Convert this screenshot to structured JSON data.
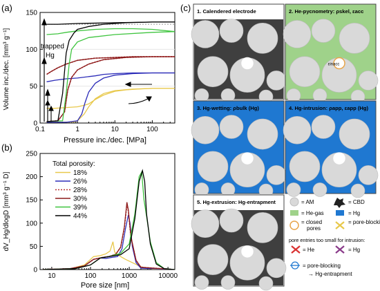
{
  "panel_a": {
    "label": "(a)",
    "chart_data": {
      "type": "line",
      "xlabel": "Pressure inc./dec. [MPa]",
      "ylabel": "Volume inc./dec. [mm³ g⁻¹]",
      "xscale": "log",
      "xlim": [
        0.1,
        400
      ],
      "ylim": [
        0,
        150
      ],
      "xticks": [
        "0.1",
        "1",
        "10",
        "100"
      ],
      "yticks": [
        "0",
        "50",
        "100",
        "150"
      ],
      "annotation": "trapped Hg",
      "series": [
        {
          "key": "18",
          "color": "#e8c84a",
          "dash": false,
          "intrusion": [
            [
              0.15,
              1
            ],
            [
              0.4,
              1
            ],
            [
              0.8,
              1.5
            ],
            [
              1.0,
              3
            ],
            [
              1.5,
              12
            ],
            [
              2,
              22
            ],
            [
              3,
              33
            ],
            [
              5,
              40
            ],
            [
              10,
              44
            ],
            [
              30,
              46
            ],
            [
              100,
              47
            ],
            [
              400,
              47
            ]
          ],
          "extrusion": [
            [
              400,
              47
            ],
            [
              100,
              47
            ],
            [
              40,
              46
            ],
            [
              20,
              45
            ],
            [
              10,
              43
            ],
            [
              5,
              38
            ],
            [
              3,
              32
            ],
            [
              2,
              26
            ],
            [
              1.5,
              24
            ],
            [
              1,
              22
            ],
            [
              0.5,
              21
            ],
            [
              0.25,
              20
            ],
            [
              0.15,
              20
            ]
          ]
        },
        {
          "key": "26",
          "color": "#2b2bb8",
          "dash": false,
          "intrusion": [
            [
              0.15,
              1
            ],
            [
              0.5,
              1
            ],
            [
              1.0,
              3
            ],
            [
              1.3,
              12
            ],
            [
              1.6,
              28
            ],
            [
              2,
              42
            ],
            [
              3,
              54
            ],
            [
              5,
              61
            ],
            [
              10,
              65
            ],
            [
              30,
              67
            ],
            [
              100,
              68
            ],
            [
              400,
              68
            ]
          ],
          "extrusion": [
            [
              400,
              68
            ],
            [
              100,
              68
            ],
            [
              30,
              68
            ],
            [
              10,
              67
            ],
            [
              5,
              66
            ],
            [
              3,
              64
            ],
            [
              2,
              63
            ],
            [
              1,
              61
            ],
            [
              0.5,
              60
            ],
            [
              0.25,
              58
            ],
            [
              0.15,
              56
            ]
          ]
        },
        {
          "key": "28",
          "color": "#b83030",
          "dash": true,
          "intrusion": [
            [
              0.15,
              2
            ],
            [
              0.3,
              3
            ],
            [
              0.45,
              15
            ],
            [
              0.55,
              45
            ],
            [
              0.7,
              62
            ],
            [
              1,
              72
            ],
            [
              2,
              80
            ],
            [
              5,
              86
            ],
            [
              20,
              89
            ],
            [
              100,
              90
            ],
            [
              400,
              90
            ]
          ],
          "extrusion": [
            [
              400,
              90
            ],
            [
              100,
              90
            ],
            [
              30,
              90
            ],
            [
              10,
              89
            ],
            [
              3,
              88
            ],
            [
              1,
              85
            ],
            [
              0.5,
              80
            ],
            [
              0.3,
              75
            ],
            [
              0.2,
              70
            ],
            [
              0.15,
              66
            ]
          ]
        },
        {
          "key": "30",
          "color": "#8b1a1a",
          "dash": false,
          "intrusion": [
            [
              0.15,
              2
            ],
            [
              0.3,
              3
            ],
            [
              0.45,
              15
            ],
            [
              0.55,
              45
            ],
            [
              0.7,
              62
            ],
            [
              1,
              72
            ],
            [
              2,
              80
            ],
            [
              5,
              86
            ],
            [
              20,
              89
            ],
            [
              100,
              90
            ],
            [
              400,
              90
            ]
          ],
          "extrusion": [
            [
              400,
              90
            ],
            [
              100,
              90
            ],
            [
              30,
              90
            ],
            [
              10,
              89
            ],
            [
              3,
              88
            ],
            [
              1,
              85
            ],
            [
              0.5,
              80
            ],
            [
              0.3,
              75
            ],
            [
              0.2,
              70
            ],
            [
              0.15,
              66
            ]
          ]
        },
        {
          "key": "39",
          "color": "#3ec43e",
          "dash": false,
          "intrusion": [
            [
              0.15,
              2
            ],
            [
              0.4,
              3
            ],
            [
              0.5,
              40
            ],
            [
              0.6,
              80
            ],
            [
              0.7,
              100
            ],
            [
              1,
              110
            ],
            [
              2,
              116
            ],
            [
              10,
              120
            ],
            [
              100,
              123
            ],
            [
              400,
              124
            ]
          ],
          "extrusion": [
            [
              400,
              124
            ],
            [
              100,
              127
            ],
            [
              30,
              128
            ],
            [
              10,
              128
            ],
            [
              3,
              127
            ],
            [
              1,
              125
            ],
            [
              0.5,
              123
            ],
            [
              0.3,
              121
            ],
            [
              0.15,
              120
            ]
          ]
        },
        {
          "key": "44",
          "color": "#000000",
          "dash": false,
          "intrusion": [
            [
              0.15,
              2
            ],
            [
              0.3,
              3
            ],
            [
              0.4,
              40
            ],
            [
              0.5,
              95
            ],
            [
              0.6,
              112
            ],
            [
              0.8,
              122
            ],
            [
              1,
              127
            ],
            [
              2,
              131
            ],
            [
              5,
              134
            ],
            [
              20,
              136
            ],
            [
              100,
              137
            ],
            [
              400,
              137
            ]
          ],
          "extrusion": [
            [
              400,
              137
            ],
            [
              100,
              137
            ],
            [
              10,
              136
            ],
            [
              1,
              135
            ],
            [
              0.3,
              134
            ],
            [
              0.15,
              134
            ]
          ]
        }
      ]
    }
  },
  "panel_b": {
    "label": "(b)",
    "chart_data": {
      "type": "line",
      "xlabel": "Pore size [nm]",
      "ylabel": "dV_Hg/dlogD [mm³ g⁻¹ D]",
      "xscale": "log",
      "xlim": [
        5,
        15000
      ],
      "ylim": [
        0,
        250
      ],
      "xticks": [
        "10",
        "100",
        "1000",
        "10000"
      ],
      "yticks": [
        "0",
        "50",
        "100",
        "150",
        "200",
        "250"
      ],
      "legend_title": "Total porosity:",
      "legend": [
        {
          "key": "18",
          "label": "18%"
        },
        {
          "key": "26",
          "label": "26%"
        },
        {
          "key": "28",
          "label": "28%"
        },
        {
          "key": "30",
          "label": "30%"
        },
        {
          "key": "39",
          "label": "39%"
        },
        {
          "key": "44",
          "label": "44%"
        }
      ],
      "series": [
        {
          "key": "18",
          "color": "#e8c84a",
          "dash": false,
          "points": [
            [
              6,
              0
            ],
            [
              30,
              2
            ],
            [
              70,
              10
            ],
            [
              120,
              28
            ],
            [
              180,
              30
            ],
            [
              250,
              34
            ],
            [
              320,
              40
            ],
            [
              380,
              60
            ],
            [
              420,
              38
            ],
            [
              500,
              32
            ],
            [
              600,
              28
            ],
            [
              800,
              22
            ],
            [
              1200,
              15
            ],
            [
              2000,
              6
            ],
            [
              4000,
              1
            ],
            [
              15000,
              0
            ]
          ]
        },
        {
          "key": "26",
          "color": "#2b2bb8",
          "dash": false,
          "points": [
            [
              6,
              0
            ],
            [
              30,
              2
            ],
            [
              70,
              8
            ],
            [
              120,
              22
            ],
            [
              180,
              25
            ],
            [
              250,
              24
            ],
            [
              350,
              26
            ],
            [
              500,
              28
            ],
            [
              650,
              45
            ],
            [
              800,
              88
            ],
            [
              950,
              118
            ],
            [
              1050,
              100
            ],
            [
              1200,
              50
            ],
            [
              1500,
              15
            ],
            [
              2000,
              3
            ],
            [
              15000,
              0
            ]
          ]
        },
        {
          "key": "28",
          "color": "#b83030",
          "dash": true,
          "points": [
            [
              6,
              0
            ],
            [
              30,
              2
            ],
            [
              70,
              8
            ],
            [
              120,
              22
            ],
            [
              200,
              26
            ],
            [
              300,
              28
            ],
            [
              450,
              33
            ],
            [
              600,
              48
            ],
            [
              750,
              90
            ],
            [
              870,
              140
            ],
            [
              950,
              125
            ],
            [
              1100,
              70
            ],
            [
              1500,
              20
            ],
            [
              2000,
              5
            ],
            [
              15000,
              0
            ]
          ]
        },
        {
          "key": "30",
          "color": "#8b1a1a",
          "dash": false,
          "points": [
            [
              6,
              0
            ],
            [
              30,
              2
            ],
            [
              70,
              8
            ],
            [
              120,
              22
            ],
            [
              200,
              26
            ],
            [
              300,
              28
            ],
            [
              450,
              33
            ],
            [
              600,
              48
            ],
            [
              750,
              92
            ],
            [
              870,
              145
            ],
            [
              950,
              128
            ],
            [
              1100,
              72
            ],
            [
              1500,
              20
            ],
            [
              2000,
              5
            ],
            [
              15000,
              0
            ]
          ]
        },
        {
          "key": "39",
          "color": "#3ec43e",
          "dash": false,
          "points": [
            [
              6,
              0
            ],
            [
              40,
              2
            ],
            [
              100,
              10
            ],
            [
              180,
              25
            ],
            [
              300,
              28
            ],
            [
              600,
              35
            ],
            [
              1000,
              55
            ],
            [
              1400,
              120
            ],
            [
              1800,
              200
            ],
            [
              2100,
              210
            ],
            [
              2400,
              150
            ],
            [
              2800,
              115
            ],
            [
              3500,
              60
            ],
            [
              5000,
              15
            ],
            [
              8000,
              2
            ],
            [
              15000,
              0
            ]
          ]
        },
        {
          "key": "44",
          "color": "#000000",
          "dash": false,
          "points": [
            [
              6,
              0
            ],
            [
              40,
              2
            ],
            [
              100,
              10
            ],
            [
              180,
              25
            ],
            [
              300,
              28
            ],
            [
              600,
              32
            ],
            [
              1000,
              45
            ],
            [
              1400,
              110
            ],
            [
              1800,
              190
            ],
            [
              2200,
              213
            ],
            [
              2500,
              190
            ],
            [
              2800,
              120
            ],
            [
              3500,
              55
            ],
            [
              5000,
              12
            ],
            [
              8000,
              2
            ],
            [
              15000,
              0
            ]
          ]
        }
      ]
    }
  },
  "panel_c": {
    "label": "(c)",
    "steps": [
      {
        "num": "1.",
        "title": "Calendered electrode"
      },
      {
        "num": "2.",
        "title": "He-pycnometry: ρskel, εacc"
      },
      {
        "num": "3.",
        "title": "Hg-wetting: ρbulk (Hg)"
      },
      {
        "num": "4.",
        "title": "Hg-intrusion: ρapp, εapp (Hg)"
      },
      {
        "num": "5.",
        "title": "Hg-extrusion: Hg-entrapment"
      }
    ],
    "inacc_label": "εinacc",
    "legend": {
      "am": "= AM",
      "cbd": "= CBD",
      "he": "= He-gas",
      "hg": "= Hg",
      "closed": "= closed pores",
      "blocking": "= pore-blocking",
      "entries_title": "pore entries too small for intrusion:",
      "entry_he": "= He",
      "entry_hg": "= Hg",
      "pb_entrap_1": "= pore-blocking",
      "pb_entrap_2": "→ Hg-entrapment"
    },
    "colors": {
      "he": "#9fd28a",
      "hg": "#1f78d1",
      "am": "#d9d9d9",
      "closed": "#e8a44a",
      "x_red": "#d93030"
    }
  }
}
